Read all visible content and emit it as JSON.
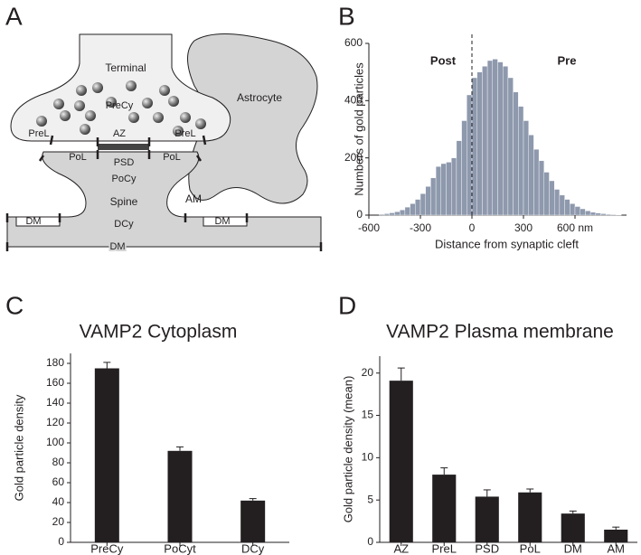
{
  "panel_labels": [
    "A",
    "B",
    "C",
    "D"
  ],
  "diagram": {
    "terminal": "Terminal",
    "precy": "PreCy",
    "prel_left": "PreL",
    "az": "AZ",
    "prel_right": "PreL",
    "pol_left": "PoL",
    "psd": "PSD",
    "pol_right": "PoL",
    "pocy": "PoCy",
    "spine": "Spine",
    "dcy": "DCy",
    "dm_left": "DM",
    "dm_right": "DM",
    "dm_bottom": "DM",
    "am": "AM",
    "astrocyte": "Astrocyte"
  },
  "chart_data": [
    {
      "type": "histogram",
      "color": "#8e99ad",
      "bins": [
        -540,
        -510,
        -480,
        -450,
        -420,
        -390,
        -360,
        -330,
        -300,
        -270,
        -240,
        -210,
        -180,
        -150,
        -120,
        -90,
        -60,
        -30,
        0,
        30,
        60,
        90,
        120,
        150,
        180,
        210,
        240,
        270,
        300,
        330,
        360,
        390,
        420,
        450,
        480,
        510,
        540,
        570,
        600,
        630,
        660,
        690,
        720,
        750,
        780,
        810,
        840,
        870
      ],
      "values": [
        3,
        5,
        8,
        12,
        18,
        28,
        40,
        55,
        75,
        100,
        130,
        170,
        180,
        185,
        200,
        260,
        330,
        420,
        480,
        500,
        520,
        540,
        545,
        535,
        520,
        480,
        430,
        380,
        330,
        280,
        230,
        190,
        150,
        120,
        90,
        70,
        55,
        40,
        30,
        22,
        15,
        10,
        7,
        5,
        3,
        2,
        1
      ],
      "xlim": [
        -600,
        900
      ],
      "xticks": [
        -600,
        -300,
        0,
        300,
        {
          "value": 600,
          "label": "600 nm"
        }
      ],
      "ylim": [
        0,
        600
      ],
      "yticks": [
        0,
        200,
        400,
        600
      ],
      "x_label": "Distance from synaptic cleft",
      "y_label": "Numbers of gold particles",
      "reference_line_x": 0,
      "annotations": [
        "Post",
        "Pre"
      ]
    },
    {
      "type": "bar",
      "title": "VAMP2 Cytoplasm",
      "color": "#231f20",
      "categories": [
        "PreCy",
        "PoCyt",
        "DCy"
      ],
      "values": [
        175,
        92,
        42
      ],
      "errors": [
        6,
        4,
        2
      ],
      "ylim": [
        0,
        190
      ],
      "yticks": [
        0,
        20,
        40,
        60,
        80,
        100,
        120,
        140,
        160,
        180
      ],
      "y_label": "Gold particle density"
    },
    {
      "type": "bar",
      "title": "VAMP2 Plasma membrane",
      "color": "#231f20",
      "categories": [
        "AZ",
        "PreL",
        "PSD",
        "PoL",
        "DM",
        "AM"
      ],
      "values": [
        19.1,
        8.0,
        5.4,
        5.9,
        3.4,
        1.5
      ],
      "errors": [
        1.5,
        0.8,
        0.8,
        0.4,
        0.3,
        0.3
      ],
      "ylim": [
        0,
        22
      ],
      "yticks": [
        0,
        5,
        10,
        15,
        20
      ],
      "y_label": "Gold particle density (mean)"
    }
  ]
}
